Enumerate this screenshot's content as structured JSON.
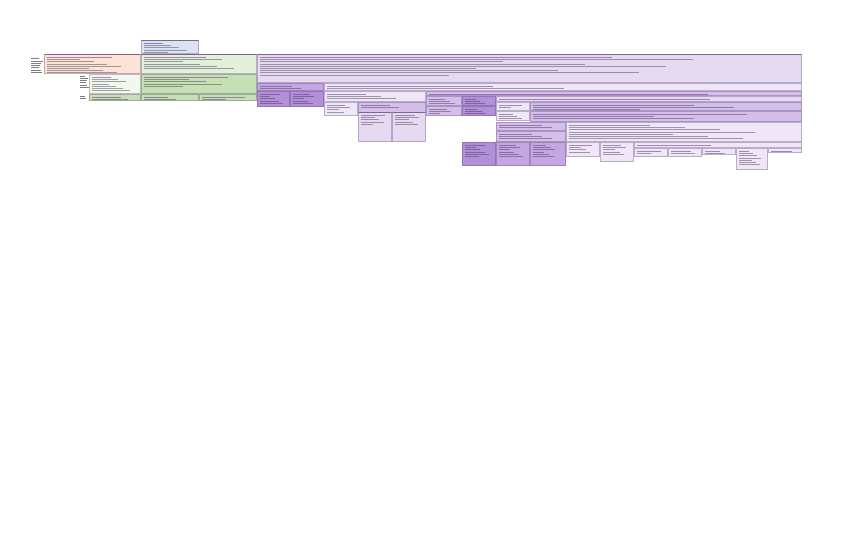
{
  "colors": {
    "blue": "#dae3f3",
    "orange": "#fbe3d6",
    "green_light": "#e2f0d9",
    "green_pale": "#f2f8ee",
    "green": "#c5e0b4",
    "purple_pale": "#efe6f8",
    "purple_light": "#e6d9f2",
    "purple_mid": "#d4bfeb",
    "purple": "#c3a6e2",
    "purple_dark": "#b28fd9",
    "border_dark": "#7a6a86"
  }
}
